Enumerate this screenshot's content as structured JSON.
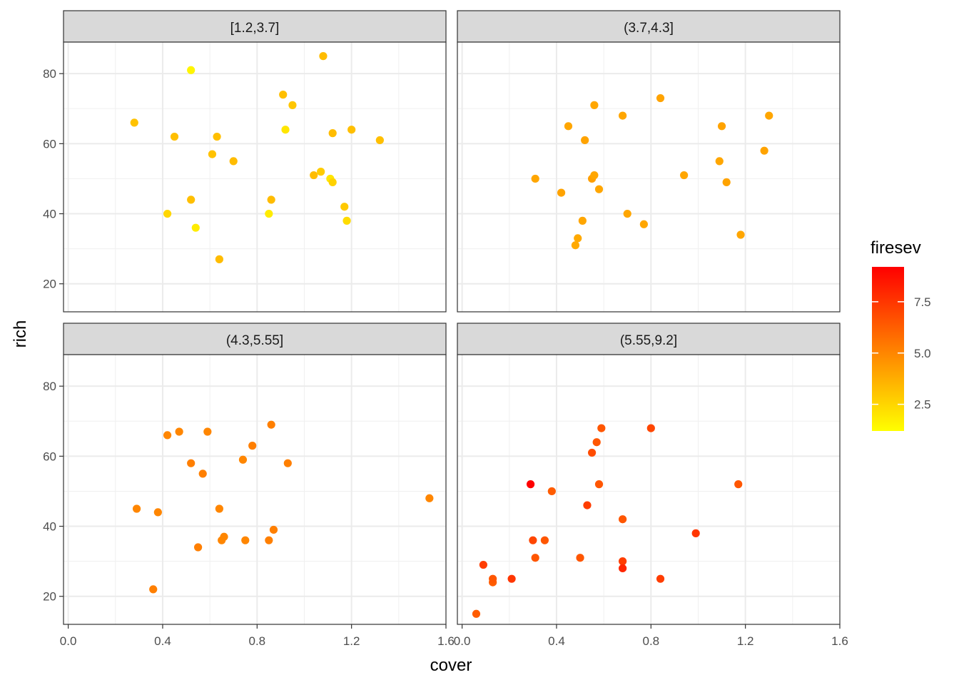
{
  "chart_data": {
    "type": "scatter",
    "xlabel": "cover",
    "ylabel": "rich",
    "xlim": [
      -0.02,
      1.6
    ],
    "ylim": [
      12,
      89
    ],
    "x_ticks": [
      "0.0",
      "0.4",
      "0.8",
      "1.2",
      "1.6"
    ],
    "y_ticks": [
      "20",
      "40",
      "60",
      "80"
    ],
    "grid": true,
    "legend": {
      "title": "firesev",
      "position": "right",
      "ticks": [
        "2.5",
        "5.0",
        "7.5"
      ],
      "range": [
        1.2,
        9.2
      ],
      "low_color": "#FFFF00",
      "high_color": "#FF0000"
    },
    "panels": [
      {
        "title": "[1.2,3.7]",
        "points": [
          {
            "x": 0.28,
            "y": 66,
            "c": 3.1
          },
          {
            "x": 0.45,
            "y": 62,
            "c": 3.2
          },
          {
            "x": 0.52,
            "y": 81,
            "c": 1.5
          },
          {
            "x": 0.42,
            "y": 40,
            "c": 2.5
          },
          {
            "x": 0.52,
            "y": 44,
            "c": 3.2
          },
          {
            "x": 0.54,
            "y": 36,
            "c": 1.8
          },
          {
            "x": 0.61,
            "y": 57,
            "c": 3.1
          },
          {
            "x": 0.63,
            "y": 62,
            "c": 3.2
          },
          {
            "x": 0.64,
            "y": 27,
            "c": 3.3
          },
          {
            "x": 0.7,
            "y": 55,
            "c": 3.3
          },
          {
            "x": 0.85,
            "y": 40,
            "c": 1.8
          },
          {
            "x": 0.86,
            "y": 44,
            "c": 3.3
          },
          {
            "x": 0.91,
            "y": 74,
            "c": 3.2
          },
          {
            "x": 0.92,
            "y": 64,
            "c": 2.0
          },
          {
            "x": 0.95,
            "y": 71,
            "c": 3.0
          },
          {
            "x": 1.04,
            "y": 51,
            "c": 3.3
          },
          {
            "x": 1.07,
            "y": 52,
            "c": 2.8
          },
          {
            "x": 1.08,
            "y": 85,
            "c": 3.3
          },
          {
            "x": 1.11,
            "y": 50,
            "c": 2.0
          },
          {
            "x": 1.12,
            "y": 49,
            "c": 2.6
          },
          {
            "x": 1.12,
            "y": 63,
            "c": 3.3
          },
          {
            "x": 1.17,
            "y": 42,
            "c": 2.9
          },
          {
            "x": 1.18,
            "y": 38,
            "c": 2.3
          },
          {
            "x": 1.2,
            "y": 64,
            "c": 3.2
          },
          {
            "x": 1.32,
            "y": 61,
            "c": 3.2
          }
        ]
      },
      {
        "title": "(3.7,4.3]",
        "points": [
          {
            "x": 0.31,
            "y": 50,
            "c": 4.0
          },
          {
            "x": 0.42,
            "y": 46,
            "c": 4.1
          },
          {
            "x": 0.45,
            "y": 65,
            "c": 4.0
          },
          {
            "x": 0.48,
            "y": 31,
            "c": 3.9
          },
          {
            "x": 0.49,
            "y": 33,
            "c": 3.9
          },
          {
            "x": 0.51,
            "y": 38,
            "c": 4.0
          },
          {
            "x": 0.52,
            "y": 61,
            "c": 4.1
          },
          {
            "x": 0.55,
            "y": 50,
            "c": 4.2
          },
          {
            "x": 0.56,
            "y": 51,
            "c": 4.0
          },
          {
            "x": 0.56,
            "y": 71,
            "c": 4.0
          },
          {
            "x": 0.58,
            "y": 47,
            "c": 4.0
          },
          {
            "x": 0.68,
            "y": 68,
            "c": 4.0
          },
          {
            "x": 0.7,
            "y": 40,
            "c": 4.0
          },
          {
            "x": 0.77,
            "y": 37,
            "c": 4.0
          },
          {
            "x": 0.84,
            "y": 73,
            "c": 4.1
          },
          {
            "x": 0.94,
            "y": 51,
            "c": 4.0
          },
          {
            "x": 1.09,
            "y": 55,
            "c": 4.0
          },
          {
            "x": 1.1,
            "y": 65,
            "c": 4.1
          },
          {
            "x": 1.12,
            "y": 49,
            "c": 4.1
          },
          {
            "x": 1.18,
            "y": 34,
            "c": 4.0
          },
          {
            "x": 1.28,
            "y": 58,
            "c": 4.1
          },
          {
            "x": 1.3,
            "y": 68,
            "c": 4.0
          }
        ]
      },
      {
        "title": "(4.3,5.55]",
        "points": [
          {
            "x": 0.29,
            "y": 45,
            "c": 5.0
          },
          {
            "x": 0.36,
            "y": 22,
            "c": 5.2
          },
          {
            "x": 0.38,
            "y": 44,
            "c": 5.0
          },
          {
            "x": 0.42,
            "y": 66,
            "c": 5.0
          },
          {
            "x": 0.47,
            "y": 67,
            "c": 5.0
          },
          {
            "x": 0.52,
            "y": 58,
            "c": 5.2
          },
          {
            "x": 0.55,
            "y": 34,
            "c": 5.2
          },
          {
            "x": 0.57,
            "y": 55,
            "c": 5.2
          },
          {
            "x": 0.59,
            "y": 67,
            "c": 5.0
          },
          {
            "x": 0.64,
            "y": 45,
            "c": 5.0
          },
          {
            "x": 0.65,
            "y": 36,
            "c": 5.0
          },
          {
            "x": 0.66,
            "y": 37,
            "c": 5.0
          },
          {
            "x": 0.74,
            "y": 59,
            "c": 5.0
          },
          {
            "x": 0.75,
            "y": 36,
            "c": 5.0
          },
          {
            "x": 0.78,
            "y": 63,
            "c": 5.2
          },
          {
            "x": 0.85,
            "y": 36,
            "c": 5.2
          },
          {
            "x": 0.86,
            "y": 69,
            "c": 5.2
          },
          {
            "x": 0.87,
            "y": 39,
            "c": 5.2
          },
          {
            "x": 0.93,
            "y": 58,
            "c": 5.2
          },
          {
            "x": 1.53,
            "y": 48,
            "c": 5.0
          }
        ]
      },
      {
        "title": "(5.55,9.2]",
        "points": [
          {
            "x": 0.06,
            "y": 15,
            "c": 6.3
          },
          {
            "x": 0.09,
            "y": 29,
            "c": 7.3
          },
          {
            "x": 0.13,
            "y": 24,
            "c": 6.3
          },
          {
            "x": 0.13,
            "y": 25,
            "c": 6.5
          },
          {
            "x": 0.21,
            "y": 25,
            "c": 7.5
          },
          {
            "x": 0.29,
            "y": 52,
            "c": 9.2
          },
          {
            "x": 0.3,
            "y": 36,
            "c": 7.0
          },
          {
            "x": 0.31,
            "y": 31,
            "c": 6.5
          },
          {
            "x": 0.35,
            "y": 36,
            "c": 6.5
          },
          {
            "x": 0.38,
            "y": 50,
            "c": 6.3
          },
          {
            "x": 0.5,
            "y": 31,
            "c": 6.5
          },
          {
            "x": 0.53,
            "y": 46,
            "c": 7.3
          },
          {
            "x": 0.55,
            "y": 61,
            "c": 6.8
          },
          {
            "x": 0.57,
            "y": 64,
            "c": 6.5
          },
          {
            "x": 0.58,
            "y": 52,
            "c": 6.5
          },
          {
            "x": 0.59,
            "y": 68,
            "c": 6.5
          },
          {
            "x": 0.68,
            "y": 30,
            "c": 7.3
          },
          {
            "x": 0.68,
            "y": 28,
            "c": 8.0
          },
          {
            "x": 0.68,
            "y": 42,
            "c": 6.5
          },
          {
            "x": 0.8,
            "y": 68,
            "c": 7.0
          },
          {
            "x": 0.84,
            "y": 25,
            "c": 7.3
          },
          {
            "x": 0.99,
            "y": 38,
            "c": 7.5
          },
          {
            "x": 1.17,
            "y": 52,
            "c": 6.5
          }
        ]
      }
    ]
  }
}
